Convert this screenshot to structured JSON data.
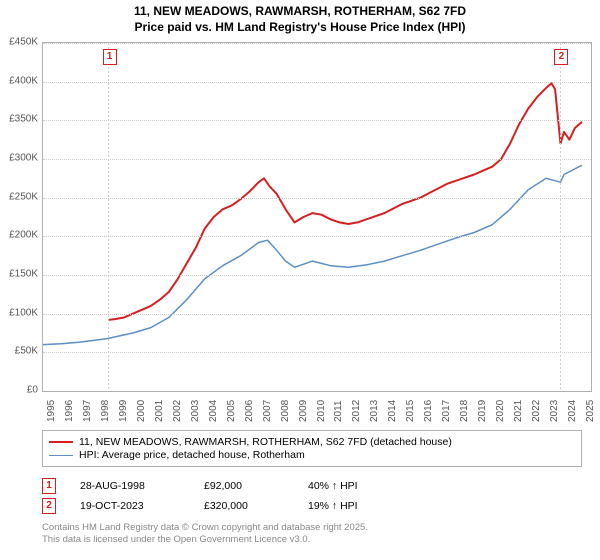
{
  "title_line1": "11, NEW MEADOWS, RAWMARSH, ROTHERHAM, S62 7FD",
  "title_line2": "Price paid vs. HM Land Registry's House Price Index (HPI)",
  "chart": {
    "type": "line",
    "xlim": [
      1995,
      2025.5
    ],
    "ylim": [
      0,
      450000
    ],
    "ytick_step": 50000,
    "ytick_labels": [
      "£0",
      "£50K",
      "£100K",
      "£150K",
      "£200K",
      "£250K",
      "£300K",
      "£350K",
      "£400K",
      "£450K"
    ],
    "xticks": [
      1995,
      1996,
      1997,
      1998,
      1999,
      2000,
      2001,
      2002,
      2003,
      2004,
      2005,
      2006,
      2007,
      2008,
      2009,
      2010,
      2011,
      2012,
      2013,
      2014,
      2015,
      2016,
      2017,
      2018,
      2019,
      2020,
      2021,
      2022,
      2023,
      2024,
      2025
    ],
    "background_color": "#ffffff",
    "grid_color": "#cccccc",
    "border_color": "#b0b0b0",
    "axis_label_fontsize": 10,
    "axis_label_color": "#555555",
    "series": [
      {
        "name": "property",
        "label": "11, NEW MEADOWS, RAWMARSH, ROTHERHAM, S62 7FD (detached house)",
        "color": "#d62020",
        "line_width": 2,
        "data": [
          [
            1998.65,
            92000
          ],
          [
            1999,
            93000
          ],
          [
            1999.5,
            95000
          ],
          [
            2000,
            100000
          ],
          [
            2000.5,
            105000
          ],
          [
            2001,
            110000
          ],
          [
            2001.5,
            118000
          ],
          [
            2002,
            128000
          ],
          [
            2002.5,
            145000
          ],
          [
            2003,
            165000
          ],
          [
            2003.5,
            185000
          ],
          [
            2004,
            210000
          ],
          [
            2004.5,
            225000
          ],
          [
            2005,
            235000
          ],
          [
            2005.5,
            240000
          ],
          [
            2006,
            248000
          ],
          [
            2006.5,
            258000
          ],
          [
            2007,
            270000
          ],
          [
            2007.3,
            275000
          ],
          [
            2007.6,
            265000
          ],
          [
            2008,
            255000
          ],
          [
            2008.5,
            235000
          ],
          [
            2009,
            218000
          ],
          [
            2009.5,
            225000
          ],
          [
            2010,
            230000
          ],
          [
            2010.5,
            228000
          ],
          [
            2011,
            222000
          ],
          [
            2011.5,
            218000
          ],
          [
            2012,
            216000
          ],
          [
            2012.5,
            218000
          ],
          [
            2013,
            222000
          ],
          [
            2013.5,
            226000
          ],
          [
            2014,
            230000
          ],
          [
            2014.5,
            236000
          ],
          [
            2015,
            242000
          ],
          [
            2015.5,
            246000
          ],
          [
            2016,
            250000
          ],
          [
            2016.5,
            256000
          ],
          [
            2017,
            262000
          ],
          [
            2017.5,
            268000
          ],
          [
            2018,
            272000
          ],
          [
            2018.5,
            276000
          ],
          [
            2019,
            280000
          ],
          [
            2019.5,
            285000
          ],
          [
            2020,
            290000
          ],
          [
            2020.5,
            300000
          ],
          [
            2021,
            320000
          ],
          [
            2021.5,
            345000
          ],
          [
            2022,
            365000
          ],
          [
            2022.5,
            380000
          ],
          [
            2023,
            392000
          ],
          [
            2023.3,
            398000
          ],
          [
            2023.5,
            390000
          ],
          [
            2023.8,
            320000
          ],
          [
            2024,
            335000
          ],
          [
            2024.3,
            325000
          ],
          [
            2024.6,
            340000
          ],
          [
            2025,
            348000
          ]
        ]
      },
      {
        "name": "hpi",
        "label": "HPI: Average price, detached house, Rotherham",
        "color": "#5b8fc7",
        "line_width": 1.5,
        "data": [
          [
            1995,
            60000
          ],
          [
            1996,
            61000
          ],
          [
            1997,
            63000
          ],
          [
            1998,
            66000
          ],
          [
            1998.65,
            68000
          ],
          [
            1999,
            70000
          ],
          [
            2000,
            75000
          ],
          [
            2001,
            82000
          ],
          [
            2002,
            95000
          ],
          [
            2003,
            118000
          ],
          [
            2004,
            145000
          ],
          [
            2005,
            162000
          ],
          [
            2006,
            175000
          ],
          [
            2007,
            192000
          ],
          [
            2007.5,
            195000
          ],
          [
            2008,
            182000
          ],
          [
            2008.5,
            168000
          ],
          [
            2009,
            160000
          ],
          [
            2010,
            168000
          ],
          [
            2011,
            162000
          ],
          [
            2012,
            160000
          ],
          [
            2013,
            163000
          ],
          [
            2014,
            168000
          ],
          [
            2015,
            175000
          ],
          [
            2016,
            182000
          ],
          [
            2017,
            190000
          ],
          [
            2018,
            198000
          ],
          [
            2019,
            205000
          ],
          [
            2020,
            215000
          ],
          [
            2021,
            235000
          ],
          [
            2022,
            260000
          ],
          [
            2023,
            275000
          ],
          [
            2023.8,
            270000
          ],
          [
            2024,
            280000
          ],
          [
            2025,
            292000
          ]
        ]
      }
    ],
    "markers": [
      {
        "id": "1",
        "x": 1998.65,
        "y": 92000,
        "color": "#d62020"
      },
      {
        "id": "2",
        "x": 2023.8,
        "y": 320000,
        "color": "#d62020"
      }
    ]
  },
  "legend": {
    "border_color": "#b0b0b0",
    "fontsize": 10.5
  },
  "events": [
    {
      "id": "1",
      "color": "#d62020",
      "date": "28-AUG-1998",
      "price": "£92,000",
      "diff": "40% ↑ HPI"
    },
    {
      "id": "2",
      "color": "#d62020",
      "date": "19-OCT-2023",
      "price": "£320,000",
      "diff": "19% ↑ HPI"
    }
  ],
  "footer_line1": "Contains HM Land Registry data © Crown copyright and database right 2025.",
  "footer_line2": "This data is licensed under the Open Government Licence v3.0."
}
